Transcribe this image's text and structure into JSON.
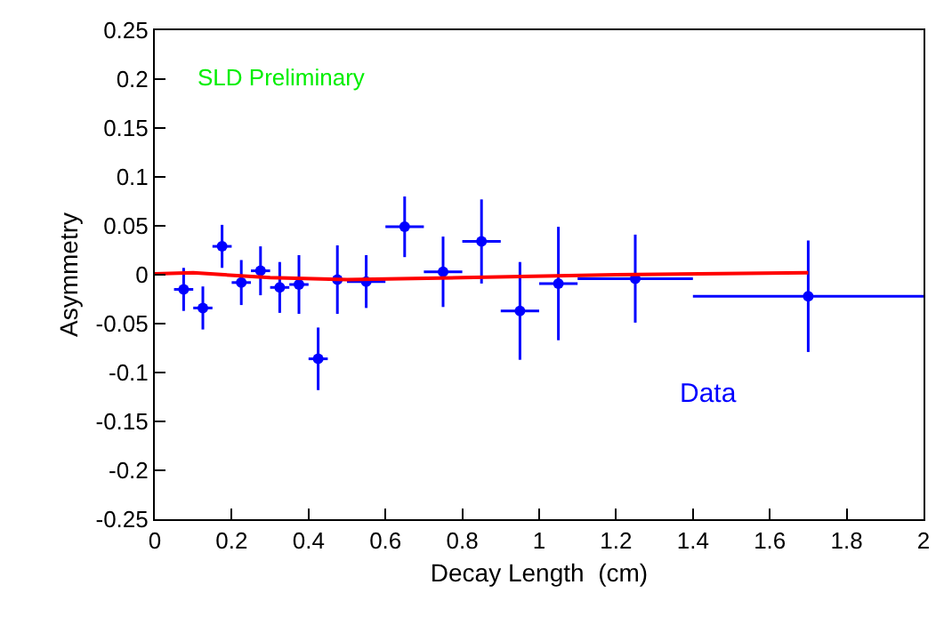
{
  "chart_data": {
    "type": "scatter",
    "xlabel": "Decay Length  (cm)",
    "ylabel": "Asymmetry",
    "annotations": [
      "SLD Preliminary"
    ],
    "xlim": [
      0,
      2
    ],
    "xticks": [
      0,
      0.2,
      0.4,
      0.6,
      0.8,
      1,
      1.2,
      1.4,
      1.6,
      1.8,
      2
    ],
    "ylim": [
      -0.25,
      0.25
    ],
    "yticks": [
      -0.25,
      -0.2,
      -0.15,
      -0.1,
      -0.05,
      0,
      0.05,
      0.1,
      0.15,
      0.2,
      0.25
    ],
    "grid": false,
    "legend": false,
    "marker": "circle",
    "series": [
      {
        "name": "Data",
        "color": "#0000ff",
        "x": [
          0.075,
          0.125,
          0.175,
          0.225,
          0.275,
          0.325,
          0.375,
          0.425,
          0.475,
          0.55,
          0.65,
          0.75,
          0.85,
          0.95,
          1.05,
          1.25,
          1.7
        ],
        "values": [
          -0.015,
          -0.034,
          0.029,
          -0.008,
          0.004,
          -0.013,
          -0.01,
          -0.086,
          -0.005,
          -0.007,
          0.049,
          0.003,
          0.034,
          -0.037,
          -0.009,
          -0.004,
          -0.022
        ],
        "errors": [
          0.022,
          0.022,
          0.022,
          0.023,
          0.025,
          0.026,
          0.03,
          0.032,
          0.035,
          0.027,
          0.031,
          0.036,
          0.043,
          0.05,
          0.058,
          0.045,
          0.057
        ],
        "xerrors": [
          0.025,
          0.025,
          0.025,
          0.025,
          0.025,
          0.025,
          0.025,
          0.025,
          0.025,
          0.05,
          0.05,
          0.05,
          0.05,
          0.05,
          0.05,
          0.15,
          0.3
        ]
      },
      {
        "type": "line",
        "color": "#ff0000",
        "marker": "none",
        "line_style": "solid",
        "x": [
          0,
          0.1,
          0.3,
          0.5,
          0.8,
          1.2,
          1.7
        ],
        "values": [
          0.001,
          0.002,
          -0.003,
          -0.005,
          -0.003,
          0,
          0.002
        ]
      }
    ]
  }
}
